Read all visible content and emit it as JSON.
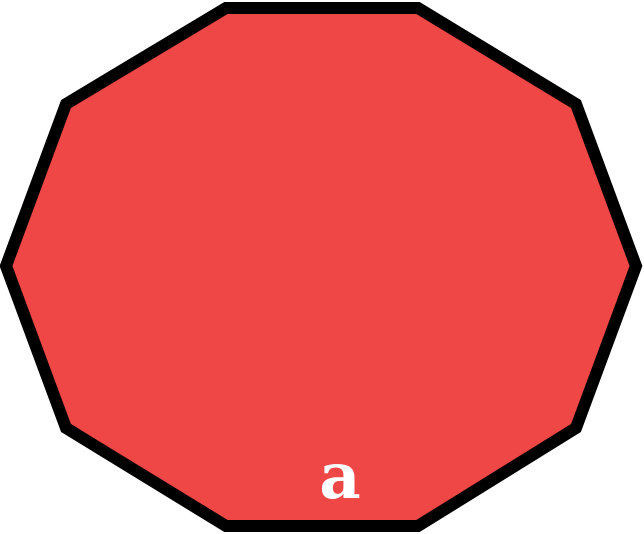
{
  "shape": {
    "type": "decagon",
    "fill_color": "#ef4646",
    "stroke_color": "#000000",
    "label": "a",
    "label_color": "#ffffff"
  }
}
